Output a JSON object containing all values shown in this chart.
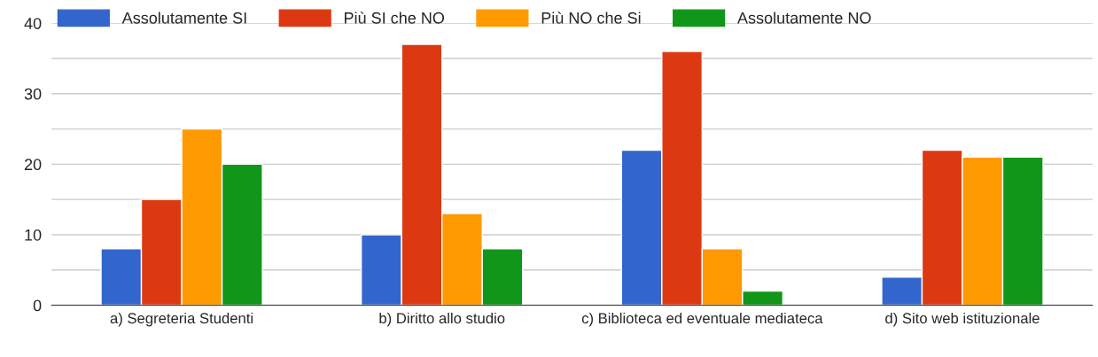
{
  "chart_data": {
    "type": "bar",
    "categories": [
      "a) Segreteria Studenti",
      "b) Diritto allo studio",
      "c) Biblioteca ed eventuale mediateca",
      "d) Sito web istituzionale"
    ],
    "series": [
      {
        "name": "Assolutamente SI",
        "color": "#3366cc",
        "values": [
          8,
          10,
          22,
          4
        ]
      },
      {
        "name": "Più SI che NO",
        "color": "#dc3912",
        "values": [
          15,
          37,
          36,
          22
        ]
      },
      {
        "name": "Più NO che Si",
        "color": "#ff9900",
        "values": [
          25,
          13,
          8,
          21
        ]
      },
      {
        "name": "Assolutamente NO",
        "color": "#109618",
        "values": [
          20,
          8,
          2,
          21
        ]
      }
    ],
    "ylim": [
      0,
      40
    ],
    "yticks": [
      0,
      {
        "value": 5,
        "label": null
      },
      10,
      {
        "value": 15,
        "label": null
      },
      20,
      {
        "value": 25,
        "label": null
      },
      30,
      {
        "value": 35,
        "label": null
      },
      40
    ],
    "grid": "y",
    "legend": "top left"
  }
}
